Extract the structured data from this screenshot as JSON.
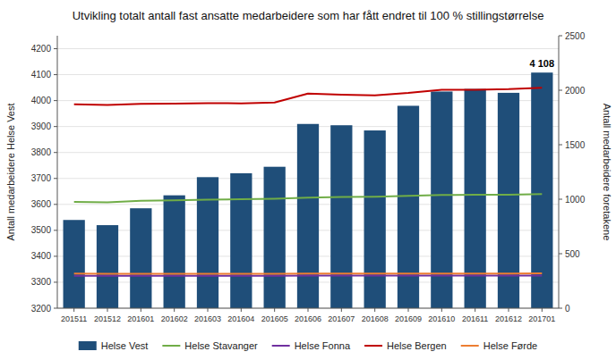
{
  "chart_data": {
    "type": "bar",
    "title": "Utvikling totalt antall fast ansatte medarbeidere som har fått endret til 100 % stillingstørrelse",
    "ylabel": "Antall medarbeidere Helse Vest",
    "y2label": "Antall medarbeidere foretakene",
    "categories": [
      "201511",
      "201512",
      "201601",
      "201602",
      "201603",
      "201604",
      "201605",
      "201606",
      "201607",
      "201608",
      "201609",
      "201610",
      "201611",
      "201612",
      "201701"
    ],
    "series": [
      {
        "name": "Helse Vest",
        "type": "bar",
        "color": "#1F4E79",
        "values": [
          3540,
          3520,
          3585,
          3635,
          3705,
          3720,
          3745,
          3910,
          3905,
          3885,
          3980,
          4035,
          4045,
          4030,
          4108
        ]
      },
      {
        "name": "Helse Stavanger",
        "type": "line",
        "axis": "y2",
        "color": "#70AD47",
        "values": [
          975,
          972,
          985,
          990,
          995,
          1000,
          1005,
          1015,
          1020,
          1023,
          1030,
          1038,
          1040,
          1042,
          1048
        ]
      },
      {
        "name": "Helse Fonna",
        "type": "line",
        "axis": "y2",
        "color": "#7030A0",
        "values": [
          298,
          298,
          298,
          298,
          298,
          298,
          298,
          299,
          299,
          299,
          299,
          299,
          299,
          299,
          300
        ]
      },
      {
        "name": "Helse Bergen",
        "type": "line",
        "axis": "y2",
        "color": "#C00000",
        "values": [
          1870,
          1865,
          1875,
          1878,
          1882,
          1880,
          1888,
          1970,
          1958,
          1952,
          1975,
          2005,
          2005,
          2010,
          2022
        ]
      },
      {
        "name": "Helse Førde",
        "type": "line",
        "axis": "y2",
        "color": "#ED7D31",
        "values": [
          318,
          315,
          315,
          315,
          316,
          316,
          316,
          318,
          318,
          318,
          318,
          318,
          318,
          318,
          320
        ]
      }
    ],
    "ylim": [
      3200,
      4250
    ],
    "yticks": [
      3200,
      3300,
      3400,
      3500,
      3600,
      3700,
      3800,
      3900,
      4000,
      4100,
      4200
    ],
    "y2lim": [
      0,
      2500
    ],
    "y2ticks": [
      0,
      500,
      1000,
      1500,
      2000,
      2500
    ],
    "annotation": "4 108",
    "grid": true,
    "legend": "bottom"
  }
}
